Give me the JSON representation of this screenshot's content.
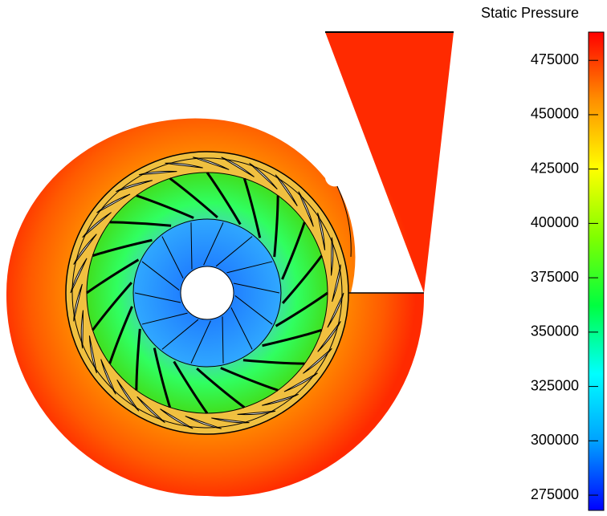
{
  "chart_data": {
    "type": "contour",
    "title": "Static Pressure",
    "clim": [
      268000,
      488000
    ],
    "cticks": [
      275000,
      300000,
      325000,
      350000,
      375000,
      400000,
      425000,
      450000,
      475000
    ],
    "colormap": [
      "#0000ff",
      "#00a0ff",
      "#00ffff",
      "#00ff40",
      "#80ff00",
      "#ffff00",
      "#ff9000",
      "#ff0000"
    ]
  }
}
